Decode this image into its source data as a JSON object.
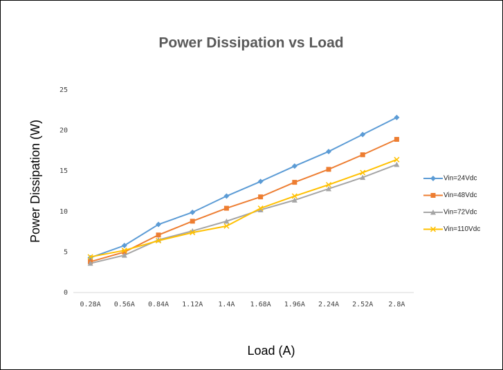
{
  "chart_data": {
    "type": "line",
    "title": "Power Dissipation vs Load",
    "x_label": "Load (A)",
    "y_label": "Power Dissipation (W)",
    "categories": [
      "0.28A",
      "0.56A",
      "0.84A",
      "1.12A",
      "1.4A",
      "1.68A",
      "1.96A",
      "2.24A",
      "2.52A",
      "2.8A"
    ],
    "series": [
      {
        "name": "Vin=24Vdc",
        "color": "#5b9bd5",
        "marker": "diamond",
        "values": [
          4.3,
          5.8,
          8.4,
          9.9,
          11.9,
          13.7,
          15.6,
          17.4,
          19.5,
          21.6
        ]
      },
      {
        "name": "Vin=48Vdc",
        "color": "#ed7d31",
        "marker": "square",
        "values": [
          3.8,
          5.0,
          7.1,
          8.8,
          10.4,
          11.8,
          13.6,
          15.2,
          17.0,
          18.9
        ]
      },
      {
        "name": "Vin=72Vdc",
        "color": "#a5a5a5",
        "marker": "triangle",
        "values": [
          3.6,
          4.6,
          6.5,
          7.6,
          8.8,
          10.2,
          11.4,
          12.8,
          14.2,
          15.8
        ]
      },
      {
        "name": "Vin=110Vdc",
        "color": "#ffc000",
        "marker": "x",
        "values": [
          4.4,
          5.2,
          6.4,
          7.4,
          8.2,
          10.4,
          11.9,
          13.3,
          14.8,
          16.4
        ]
      }
    ],
    "ylim": [
      0,
      25
    ],
    "yticks": [
      0,
      5,
      10,
      15,
      20,
      25
    ],
    "grid": false,
    "legend": "right"
  }
}
